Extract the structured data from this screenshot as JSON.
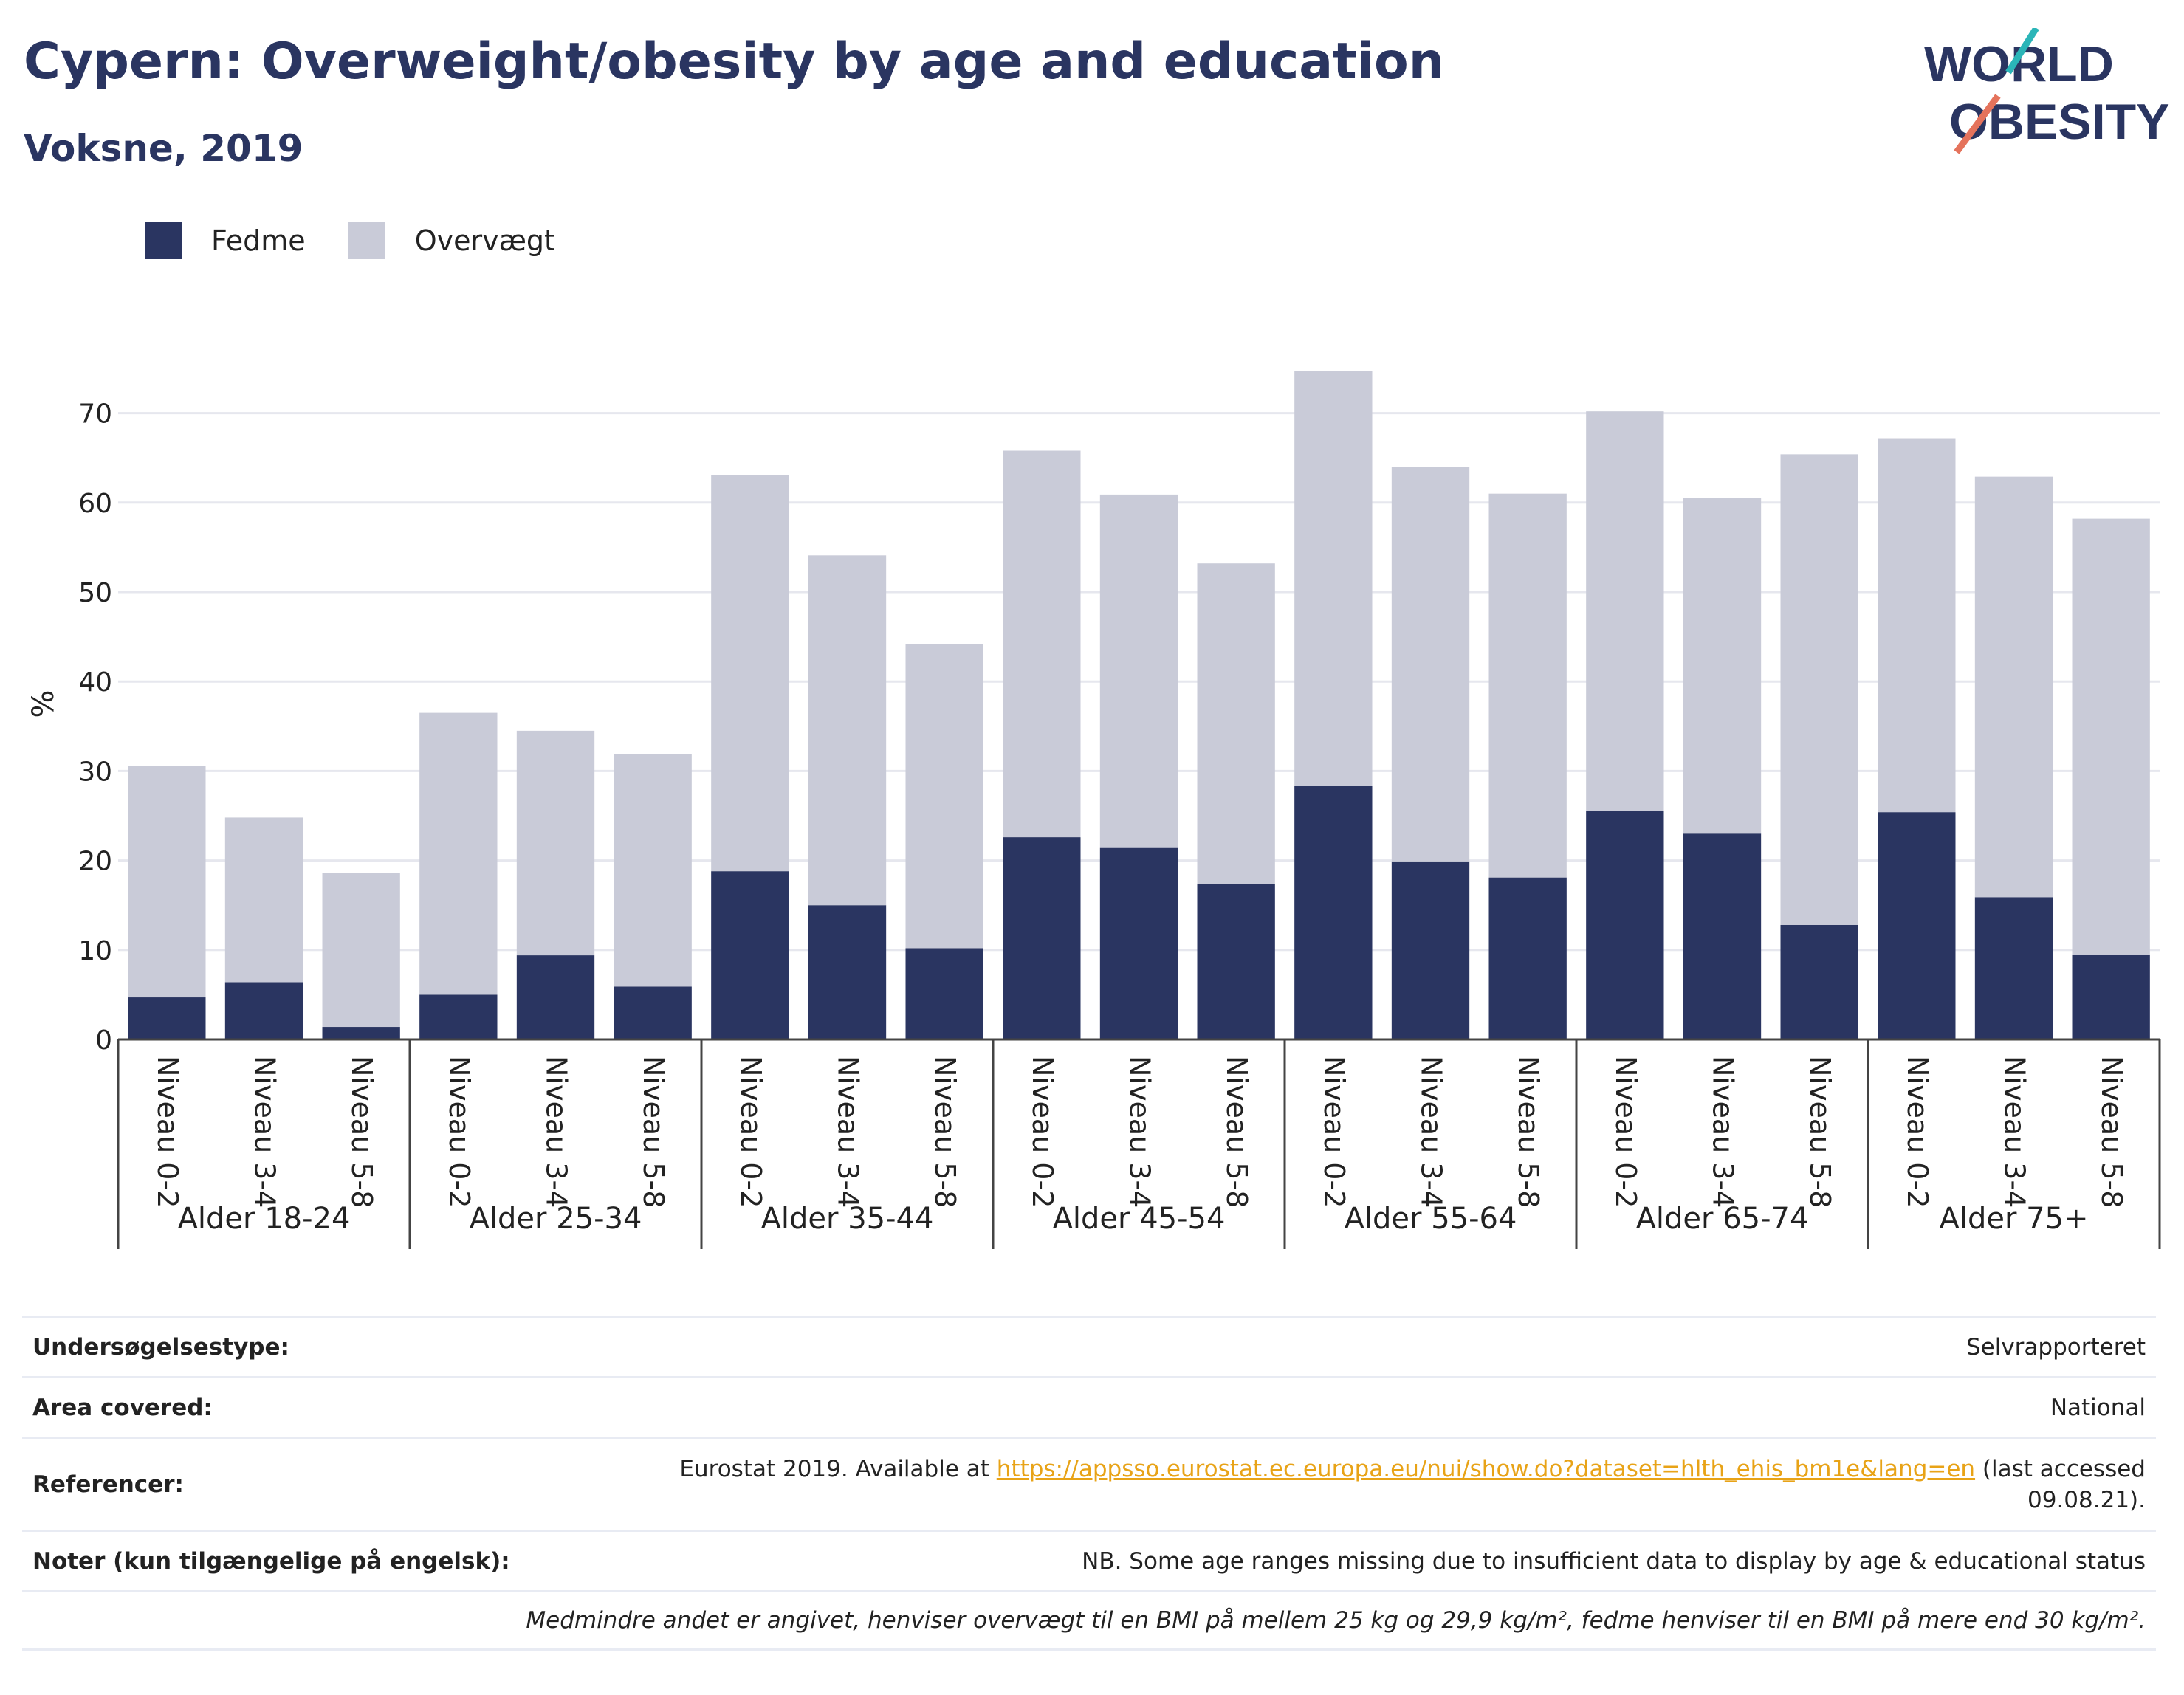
{
  "header": {
    "title": "Cypern: Overweight/obesity by age and education",
    "subtitle": "Voksne, 2019"
  },
  "logo": {
    "line1": "WORLD",
    "line2": "OBESITY",
    "icon": "world-obesity-logo"
  },
  "colors": {
    "fedme": "#2a3561",
    "overvaegt": "#c9cbd8",
    "accent_teal": "#2bb5b8",
    "accent_coral": "#e5735c",
    "link": "#e8a317"
  },
  "chart_data": {
    "type": "bar",
    "stacked": true,
    "ylabel": "%",
    "ylim": [
      0,
      75
    ],
    "yticks": [
      0,
      10,
      20,
      30,
      40,
      50,
      60,
      70
    ],
    "grid": true,
    "legend_position": "top-left",
    "groups": [
      {
        "label": "Alder 18-24",
        "categories": [
          "Niveau 0-2",
          "Niveau 3-4",
          "Niveau 5-8"
        ]
      },
      {
        "label": "Alder 25-34",
        "categories": [
          "Niveau 0-2",
          "Niveau 3-4",
          "Niveau 5-8"
        ]
      },
      {
        "label": "Alder 35-44",
        "categories": [
          "Niveau 0-2",
          "Niveau 3-4",
          "Niveau 5-8"
        ]
      },
      {
        "label": "Alder 45-54",
        "categories": [
          "Niveau 0-2",
          "Niveau 3-4",
          "Niveau 5-8"
        ]
      },
      {
        "label": "Alder 55-64",
        "categories": [
          "Niveau 0-2",
          "Niveau 3-4",
          "Niveau 5-8"
        ]
      },
      {
        "label": "Alder 65-74",
        "categories": [
          "Niveau 0-2",
          "Niveau 3-4",
          "Niveau 5-8"
        ]
      },
      {
        "label": "Alder 75+",
        "categories": [
          "Niveau 0-2",
          "Niveau 3-4",
          "Niveau 5-8"
        ]
      }
    ],
    "series": [
      {
        "name": "Fedme",
        "values": [
          4.7,
          6.4,
          1.4,
          5.0,
          9.4,
          5.9,
          18.8,
          15.0,
          10.2,
          22.6,
          21.4,
          17.4,
          28.3,
          19.9,
          18.1,
          25.5,
          23.0,
          12.8,
          25.4,
          15.9,
          9.5
        ]
      },
      {
        "name": "Overvægt",
        "values": [
          25.9,
          18.4,
          17.2,
          31.5,
          25.1,
          26.0,
          44.3,
          39.1,
          34.0,
          43.2,
          39.5,
          35.8,
          46.4,
          44.1,
          42.9,
          44.7,
          37.5,
          52.6,
          41.8,
          47.0,
          48.7
        ]
      }
    ]
  },
  "info": {
    "rows": [
      {
        "key": "Undersøgelsestype:",
        "value": "Selvrapporteret"
      },
      {
        "key": "Area covered:",
        "value": "National"
      },
      {
        "key": "Referencer:",
        "value_prefix": "Eurostat 2019. Available at ",
        "link": "https://appsso.eurostat.ec.europa.eu/nui/show.do?dataset=hlth_ehis_bm1e&lang=en",
        "value_suffix": " (last accessed",
        "value_line2": "09.08.21)."
      },
      {
        "key": "Noter (kun tilgængelige på engelsk):",
        "value": "NB. Some age ranges missing due to insufficient data to display by age & educational status"
      }
    ],
    "footnote": "Medmindre andet er angivet, henviser overvægt til en BMI på mellem 25 kg og 29,9 kg/m², fedme henviser til en BMI på mere end 30 kg/m²."
  }
}
